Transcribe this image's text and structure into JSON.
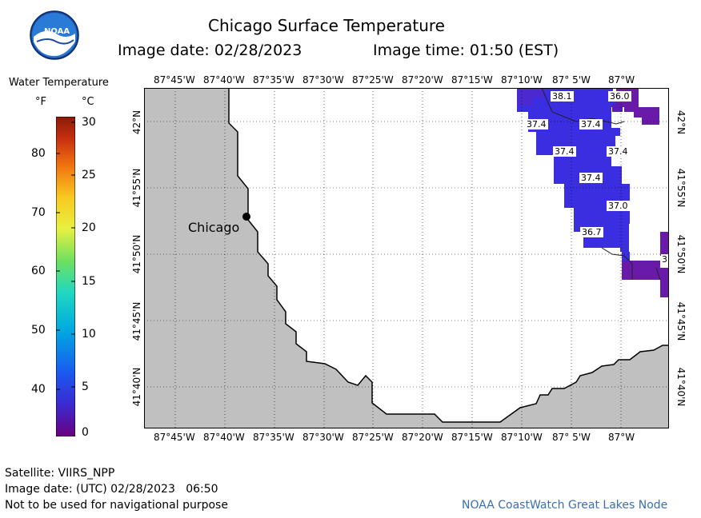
{
  "header": {
    "title": "Chicago Surface Temperature",
    "image_date": "Image date: 02/28/2023",
    "image_time": "Image time: 01:50 (EST)",
    "logo_text": "NOAA"
  },
  "legend": {
    "title": "Water Temperature",
    "unit_f": "°F",
    "unit_c": "°C",
    "f_ticks": [
      "80",
      "70",
      "60",
      "50",
      "40"
    ],
    "c_ticks": [
      "30",
      "25",
      "20",
      "15",
      "10",
      "5",
      "0"
    ],
    "gradient_colors": [
      "#6a0080",
      "#3a2ad0",
      "#1a5af0",
      "#00a8e0",
      "#20d8c0",
      "#70e060",
      "#e8f040",
      "#f8c820",
      "#f07010",
      "#c83010",
      "#8a1a08"
    ]
  },
  "map": {
    "top_lon_labels": [
      "87°45'W",
      "87°40'W",
      "87°35'W",
      "87°30'W",
      "87°25'W",
      "87°20'W",
      "87°15'W",
      "87°10'W",
      "87° 5'W",
      "87°W"
    ],
    "bottom_lon_labels": [
      "87°45'W",
      "87°40'W",
      "87°35'W",
      "87°30'W",
      "87°25'W",
      "87°20'W",
      "87°15'W",
      "87°10'W",
      "87° 5'W",
      "87°W"
    ],
    "lat_labels": [
      "42°N",
      "41°55'N",
      "41°50'N",
      "41°45'N",
      "41°40'N"
    ],
    "city_label": "Chicago",
    "temp_labels": [
      "38.1",
      "36.0",
      "37.4",
      "37.4",
      "37.4",
      "37.4",
      "37.4",
      "37.0",
      "36.7",
      "3"
    ],
    "land_color": "#c0c0c0",
    "water_colors": [
      "#3a2ee0",
      "#4a2ad0",
      "#5a1ab8",
      "#6a1aa8"
    ]
  },
  "footer": {
    "satellite": "Satellite: VIIRS_NPP",
    "utc_date": "Image date: (UTC) 02/28/2023   06:50",
    "disclaimer": "Not to be used for navigational purpose",
    "credit": "NOAA CoastWatch Great Lakes Node"
  }
}
